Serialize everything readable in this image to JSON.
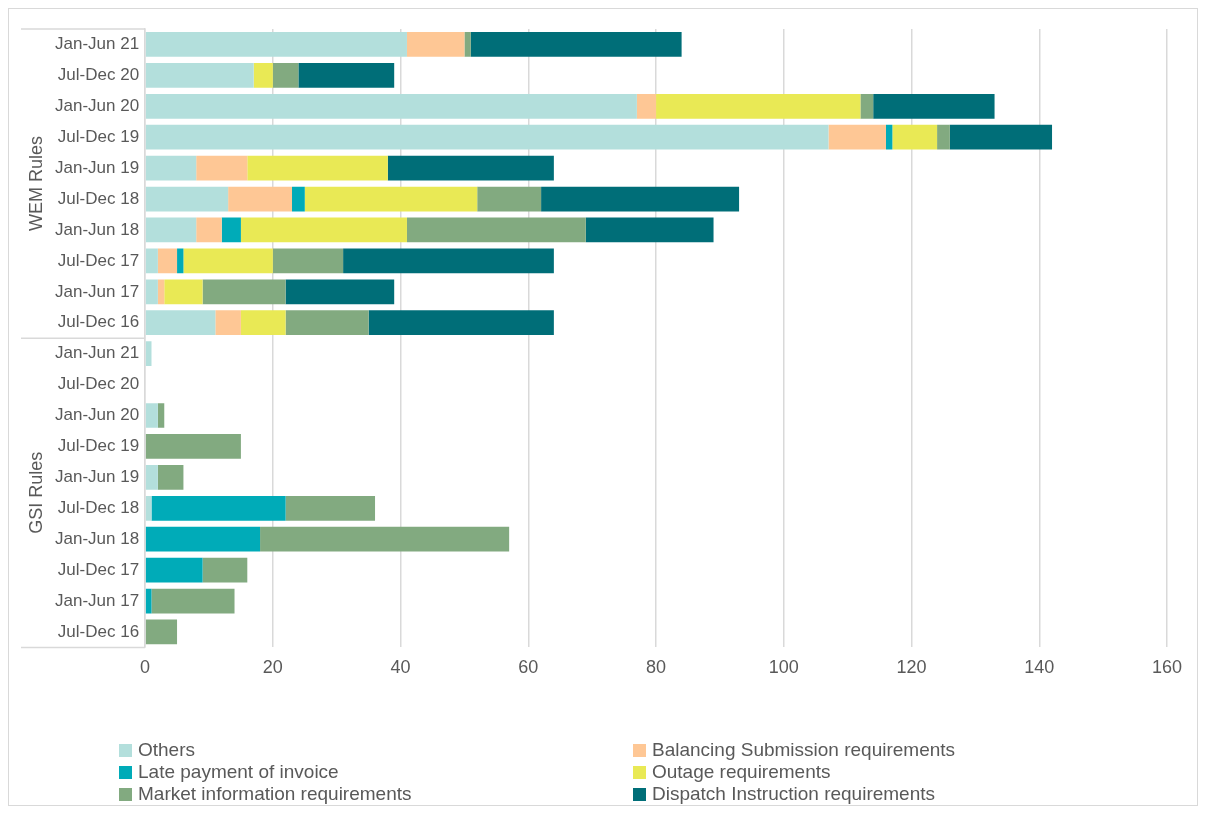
{
  "chart_data": {
    "type": "bar",
    "orientation": "horizontal",
    "stacked": true,
    "categories": [
      "Jan-Jun 21",
      "Jul-Dec 20",
      "Jan-Jun 20",
      "Jul-Dec 19",
      "Jan-Jun 19",
      "Jul-Dec 18",
      "Jan-Jun 18",
      "Jul-Dec 17",
      "Jan-Jun 17",
      "Jul-Dec 16",
      "Jan-Jun 21",
      "Jul-Dec 20",
      "Jan-Jun 20",
      "Jul-Dec 19",
      "Jan-Jun 19",
      "Jul-Dec 18",
      "Jan-Jun 18",
      "Jul-Dec 17",
      "Jan-Jun 17",
      "Jul-Dec 16"
    ],
    "series": [
      {
        "name": "Others",
        "color": "#b3dfdc",
        "values": [
          41,
          17,
          77,
          107,
          8,
          13,
          8,
          2,
          2,
          11,
          1,
          0,
          2,
          0,
          2,
          1,
          0,
          0,
          0,
          0
        ]
      },
      {
        "name": "Balancing Submission requirements",
        "color": "#fec795",
        "values": [
          9,
          0,
          3,
          9,
          8,
          10,
          4,
          3,
          1,
          4,
          0,
          0,
          0,
          0,
          0,
          0,
          0,
          0,
          0,
          0
        ]
      },
      {
        "name": "Late payment of invoice",
        "color": "#00abb8",
        "values": [
          0,
          0,
          0,
          1,
          0,
          2,
          3,
          1,
          0,
          0,
          0,
          0,
          0,
          0,
          0,
          21,
          18,
          9,
          1,
          0
        ]
      },
      {
        "name": "Outage requirements",
        "color": "#e9e955",
        "values": [
          0,
          3,
          32,
          7,
          22,
          27,
          26,
          14,
          6,
          7,
          0,
          0,
          0,
          0,
          0,
          0,
          0,
          0,
          0,
          0
        ]
      },
      {
        "name": "Market information requirements",
        "color": "#82aa80",
        "values": [
          1,
          4,
          2,
          2,
          0,
          10,
          28,
          11,
          13,
          13,
          0,
          0,
          1,
          15,
          4,
          14,
          39,
          7,
          13,
          5
        ]
      },
      {
        "name": "Dispatch Instruction requirements",
        "color": "#006e78",
        "values": [
          33,
          15,
          19,
          16,
          26,
          31,
          20,
          33,
          17,
          29,
          0,
          0,
          0,
          0,
          0,
          0,
          0,
          0,
          0,
          0
        ]
      }
    ],
    "xlim": [
      0,
      160
    ],
    "xticks": [
      0,
      20,
      40,
      60,
      80,
      100,
      120,
      140,
      160
    ],
    "annotations": [
      "WEM Rules",
      "GSI Rules"
    ],
    "grid": "x",
    "legend": "bottom"
  }
}
